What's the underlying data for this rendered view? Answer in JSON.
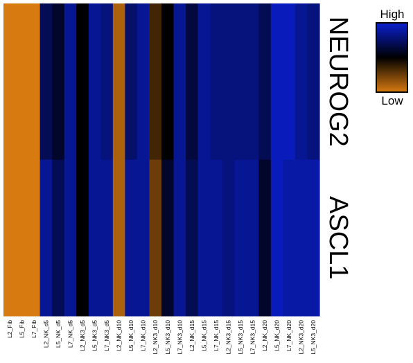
{
  "chart_data": {
    "type": "heatmap",
    "rows": [
      "NEUROG2",
      "ASCL1"
    ],
    "columns": [
      "L2_Fib",
      "L5_Fib",
      "L7_Fib",
      "L2_NK_d5",
      "L5_NK_d5",
      "L7_NK_d5",
      "L2_NK3_d5",
      "L5_NK3_d5",
      "L7_NK3_d5",
      "L2_NK_d10",
      "L5_NK_d10",
      "L7_NK_d10",
      "L2_NK3_d10",
      "L5_NK3_d10",
      "L7_NK3_d10",
      "L2_NK_d15",
      "L5_NK_d15",
      "L7_NK_d15",
      "L2_NK3_d15",
      "L5_NK3_d15",
      "L7_NK3_d15",
      "L2_NK_d20",
      "L5_NK_d20",
      "L7_NK_d20",
      "L2_NK3_d20",
      "L5_NK3_d20"
    ],
    "values": [
      [
        0.0,
        0.0,
        0.0,
        0.7,
        0.6,
        0.85,
        0.5,
        0.85,
        0.8,
        0.1,
        0.75,
        0.85,
        0.35,
        0.5,
        0.85,
        0.65,
        0.85,
        0.8,
        0.8,
        0.8,
        0.8,
        0.7,
        0.95,
        0.95,
        0.85,
        0.8
      ],
      [
        0.0,
        0.0,
        0.0,
        0.85,
        0.7,
        0.85,
        0.5,
        0.85,
        0.85,
        0.1,
        0.85,
        0.85,
        0.25,
        0.6,
        0.85,
        0.7,
        0.85,
        0.85,
        0.8,
        0.85,
        0.85,
        0.6,
        0.95,
        0.9,
        0.9,
        0.9
      ]
    ],
    "color_scale": {
      "low": "#d77a10",
      "mid": "#000000",
      "high": "#0a1fd0"
    },
    "legend": {
      "high_label": "High",
      "low_label": "Low",
      "placement": "top-right"
    }
  }
}
